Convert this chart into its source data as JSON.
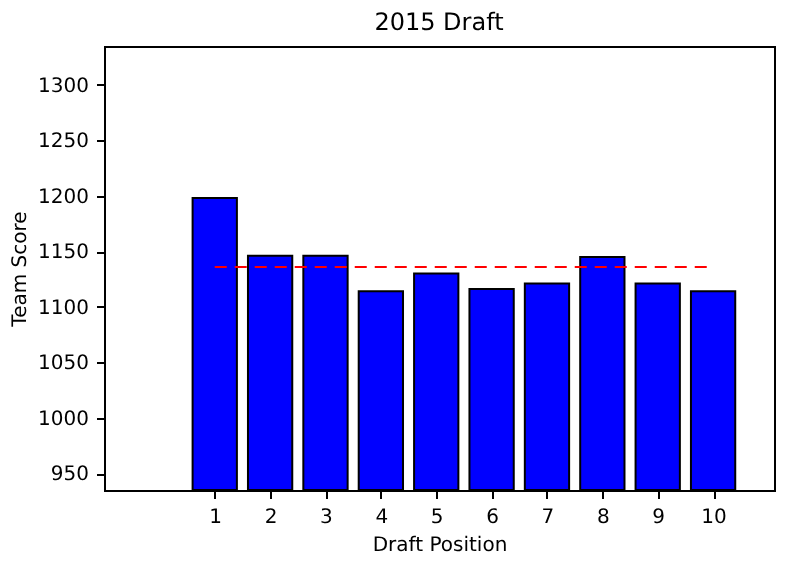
{
  "chart_data": {
    "type": "bar",
    "title": "2015 Draft",
    "xlabel": "Draft Position",
    "ylabel": "Team Score",
    "x": [
      1,
      2,
      3,
      4,
      5,
      6,
      7,
      8,
      9,
      10
    ],
    "values": [
      1198,
      1146,
      1146,
      1114,
      1130,
      1116,
      1121,
      1145,
      1121,
      1114
    ],
    "color": "#0000ff",
    "xlim": [
      -1,
      11.1
    ],
    "xticks": [
      1,
      2,
      3,
      4,
      5,
      6,
      7,
      8,
      9,
      10
    ],
    "ylim": [
      935,
      1335
    ],
    "yticks": [
      950,
      1000,
      1050,
      1100,
      1150,
      1200,
      1250,
      1300
    ],
    "ref_lines": [
      {
        "axis": "y",
        "value": 1136,
        "color": "#ff0000",
        "line_style": "dashed"
      }
    ],
    "grid": false
  }
}
